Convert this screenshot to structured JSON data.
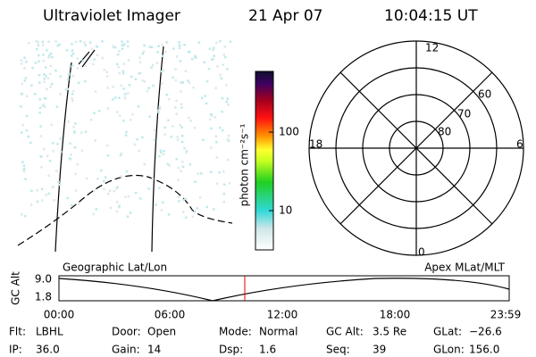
{
  "header": {
    "title": "Ultraviolet Imager",
    "date": "21 Apr 07",
    "time": "10:04:15 UT"
  },
  "colorbar": {
    "label": "photon cm⁻²s⁻¹",
    "ticks": [
      "100",
      "10"
    ]
  },
  "polar": {
    "mlt_labels": [
      "12",
      "6",
      "0",
      "18"
    ],
    "mlat_labels": [
      "60",
      "70",
      "80"
    ]
  },
  "orbit": {
    "left_label": "Geographic Lat/Lon",
    "right_label": "Apex MLat/MLT",
    "y_label": "GC Alt",
    "yticks": [
      "9.0",
      "1.8"
    ],
    "xticks": [
      "00:00",
      "06:00",
      "12:00",
      "18:00",
      "23:59"
    ]
  },
  "info": {
    "rows": [
      [
        [
          "Flt:",
          "LBHL"
        ],
        [
          "Door:",
          "Open"
        ],
        [
          "Mode:",
          "Normal"
        ],
        [
          "GC Alt:",
          "3.5 Re"
        ],
        [
          "GLat:",
          "−26.6"
        ]
      ],
      [
        [
          "IP:",
          "36.0"
        ],
        [
          "Gain:",
          "14"
        ],
        [
          "Dsp:",
          "1.6"
        ],
        [
          "Seq:",
          "39"
        ],
        [
          "GLon:",
          "156.0"
        ]
      ]
    ]
  }
}
